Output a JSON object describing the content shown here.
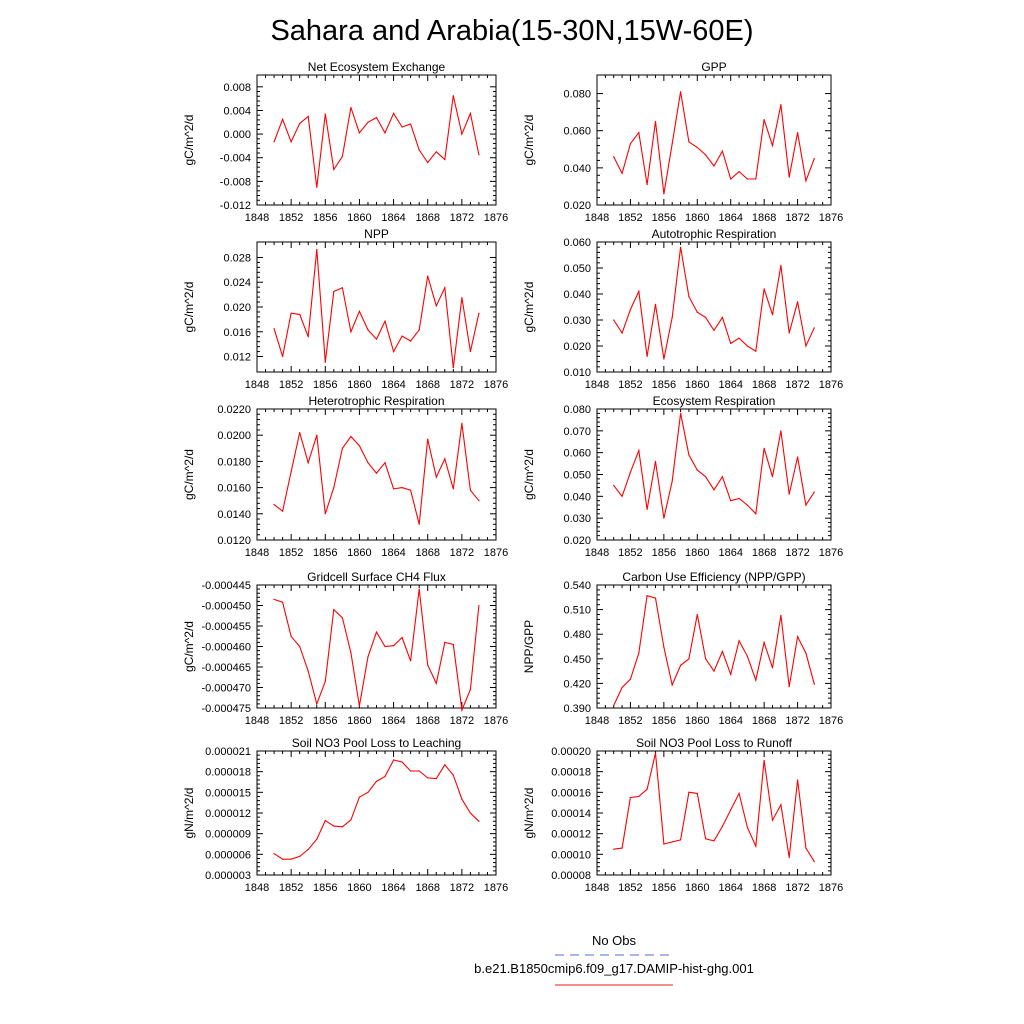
{
  "title": "Sahara and Arabia(15-30N,15W-60E)",
  "legend": {
    "entries": [
      {
        "label": "No Obs",
        "color": "#5a6ad8",
        "dash": true
      },
      {
        "label": "b.e21.B1850cmip6.f09_g17.DAMIP-hist-ghg.001",
        "color": "#e0201e",
        "dash": false
      }
    ]
  },
  "colors": {
    "series": "#ff0000",
    "axis": "#000000"
  },
  "chart_data": [
    {
      "type": "line",
      "title": "Net Ecosystem Exchange",
      "ylabel": "gC/m^2/d",
      "xlim": [
        1848,
        1876
      ],
      "xticks": [
        "1848",
        "1852",
        "1856",
        "1860",
        "1864",
        "1868",
        "1872",
        "1876"
      ],
      "ylim": [
        -0.012,
        0.01
      ],
      "yticks": [
        "0.008",
        "0.004",
        "0.000",
        "-0.004",
        "-0.008",
        "-0.012"
      ],
      "yticks_values": [
        0.008,
        0.004,
        0.0,
        -0.004,
        -0.008,
        -0.012
      ],
      "x": [
        1850,
        1851,
        1852,
        1853,
        1854,
        1855,
        1856,
        1857,
        1858,
        1859,
        1860,
        1861,
        1862,
        1863,
        1864,
        1865,
        1866,
        1867,
        1868,
        1869,
        1870,
        1871,
        1872,
        1873,
        1874
      ],
      "values": [
        -0.0013,
        0.0025,
        -0.0013,
        0.0018,
        0.003,
        -0.009,
        0.0034,
        -0.006,
        -0.0038,
        0.0045,
        0.0002,
        0.002,
        0.0028,
        0.0002,
        0.0035,
        0.0012,
        0.0017,
        -0.0027,
        -0.0048,
        -0.003,
        -0.0043,
        0.0065,
        0.0,
        0.0035,
        -0.0035
      ]
    },
    {
      "type": "line",
      "title": "GPP",
      "ylabel": "gC/m^2/d",
      "xlim": [
        1848,
        1876
      ],
      "xticks": [
        "1848",
        "1852",
        "1856",
        "1860",
        "1864",
        "1868",
        "1872",
        "1876"
      ],
      "ylim": [
        0.02,
        0.09
      ],
      "yticks": [
        "0.080",
        "0.060",
        "0.040",
        "0.020"
      ],
      "yticks_values": [
        0.08,
        0.06,
        0.04,
        0.02
      ],
      "x": [
        1850,
        1851,
        1852,
        1853,
        1854,
        1855,
        1856,
        1857,
        1858,
        1859,
        1860,
        1861,
        1862,
        1863,
        1864,
        1865,
        1866,
        1867,
        1868,
        1869,
        1870,
        1871,
        1872,
        1873,
        1874
      ],
      "values": [
        0.046,
        0.037,
        0.053,
        0.059,
        0.031,
        0.065,
        0.026,
        0.053,
        0.081,
        0.054,
        0.051,
        0.047,
        0.041,
        0.049,
        0.034,
        0.038,
        0.034,
        0.034,
        0.066,
        0.052,
        0.074,
        0.035,
        0.059,
        0.033,
        0.045
      ]
    },
    {
      "type": "line",
      "title": "NPP",
      "ylabel": "gC/m^2/d",
      "xlim": [
        1848,
        1876
      ],
      "xticks": [
        "1848",
        "1852",
        "1856",
        "1860",
        "1864",
        "1868",
        "1872",
        "1876"
      ],
      "ylim": [
        0.0095,
        0.0305
      ],
      "yticks": [
        "0.028",
        "0.024",
        "0.020",
        "0.016",
        "0.012"
      ],
      "yticks_values": [
        0.028,
        0.024,
        0.02,
        0.016,
        0.012
      ],
      "x": [
        1850,
        1851,
        1852,
        1853,
        1854,
        1855,
        1856,
        1857,
        1858,
        1859,
        1860,
        1861,
        1862,
        1863,
        1864,
        1865,
        1866,
        1867,
        1868,
        1869,
        1870,
        1871,
        1872,
        1873,
        1874
      ],
      "values": [
        0.0165,
        0.012,
        0.019,
        0.0188,
        0.0152,
        0.0293,
        0.0111,
        0.0225,
        0.0231,
        0.016,
        0.0193,
        0.0163,
        0.0148,
        0.0177,
        0.0128,
        0.0153,
        0.0145,
        0.0163,
        0.025,
        0.0202,
        0.0231,
        0.0102,
        0.0215,
        0.0128,
        0.019
      ]
    },
    {
      "type": "line",
      "title": "Autotrophic Respiration",
      "ylabel": "gC/m^2/d",
      "xlim": [
        1848,
        1876
      ],
      "xticks": [
        "1848",
        "1852",
        "1856",
        "1860",
        "1864",
        "1868",
        "1872",
        "1876"
      ],
      "ylim": [
        0.01,
        0.06
      ],
      "yticks": [
        "0.060",
        "0.050",
        "0.040",
        "0.030",
        "0.020",
        "0.010"
      ],
      "yticks_values": [
        0.06,
        0.05,
        0.04,
        0.03,
        0.02,
        0.01
      ],
      "x": [
        1850,
        1851,
        1852,
        1853,
        1854,
        1855,
        1856,
        1857,
        1858,
        1859,
        1860,
        1861,
        1862,
        1863,
        1864,
        1865,
        1866,
        1867,
        1868,
        1869,
        1870,
        1871,
        1872,
        1873,
        1874
      ],
      "values": [
        0.03,
        0.025,
        0.034,
        0.041,
        0.016,
        0.036,
        0.015,
        0.031,
        0.058,
        0.039,
        0.033,
        0.031,
        0.026,
        0.031,
        0.021,
        0.023,
        0.02,
        0.018,
        0.042,
        0.032,
        0.051,
        0.025,
        0.037,
        0.02,
        0.027
      ]
    },
    {
      "type": "line",
      "title": "Heterotrophic Respiration",
      "ylabel": "gC/m^2/d",
      "xlim": [
        1848,
        1876
      ],
      "xticks": [
        "1848",
        "1852",
        "1856",
        "1860",
        "1864",
        "1868",
        "1872",
        "1876"
      ],
      "ylim": [
        0.012,
        0.022
      ],
      "yticks": [
        "0.0220",
        "0.0200",
        "0.0180",
        "0.0160",
        "0.0140",
        "0.0120"
      ],
      "yticks_values": [
        0.022,
        0.02,
        0.018,
        0.016,
        0.014,
        0.012
      ],
      "x": [
        1850,
        1851,
        1852,
        1853,
        1854,
        1855,
        1856,
        1857,
        1858,
        1859,
        1860,
        1861,
        1862,
        1863,
        1864,
        1865,
        1866,
        1867,
        1868,
        1869,
        1870,
        1871,
        1872,
        1873,
        1874
      ],
      "values": [
        0.0147,
        0.0142,
        0.0172,
        0.0202,
        0.0179,
        0.02,
        0.014,
        0.016,
        0.019,
        0.0199,
        0.0192,
        0.0179,
        0.0171,
        0.0179,
        0.0159,
        0.016,
        0.0158,
        0.0132,
        0.0197,
        0.0168,
        0.0182,
        0.0159,
        0.0209,
        0.0158,
        0.015
      ]
    },
    {
      "type": "line",
      "title": "Ecosystem Respiration",
      "ylabel": "gC/m^2/d",
      "xlim": [
        1848,
        1876
      ],
      "xticks": [
        "1848",
        "1852",
        "1856",
        "1860",
        "1864",
        "1868",
        "1872",
        "1876"
      ],
      "ylim": [
        0.02,
        0.08
      ],
      "yticks": [
        "0.080",
        "0.070",
        "0.060",
        "0.050",
        "0.040",
        "0.030",
        "0.020"
      ],
      "yticks_values": [
        0.08,
        0.07,
        0.06,
        0.05,
        0.04,
        0.03,
        0.02
      ],
      "x": [
        1850,
        1851,
        1852,
        1853,
        1854,
        1855,
        1856,
        1857,
        1858,
        1859,
        1860,
        1861,
        1862,
        1863,
        1864,
        1865,
        1866,
        1867,
        1868,
        1869,
        1870,
        1871,
        1872,
        1873,
        1874
      ],
      "values": [
        0.045,
        0.04,
        0.051,
        0.061,
        0.034,
        0.056,
        0.03,
        0.047,
        0.078,
        0.059,
        0.052,
        0.049,
        0.043,
        0.049,
        0.038,
        0.039,
        0.036,
        0.032,
        0.062,
        0.049,
        0.07,
        0.041,
        0.058,
        0.036,
        0.042
      ]
    },
    {
      "type": "line",
      "title": "Gridcell Surface CH4 Flux",
      "ylabel": "gC/m^2/d",
      "xlim": [
        1848,
        1876
      ],
      "xticks": [
        "1848",
        "1852",
        "1856",
        "1860",
        "1864",
        "1868",
        "1872",
        "1876"
      ],
      "ylim": [
        -0.000475,
        -0.000445
      ],
      "yticks": [
        "-0.000445",
        "-0.000450",
        "-0.000455",
        "-0.000460",
        "-0.000465",
        "-0.000470",
        "-0.000475"
      ],
      "yticks_values": [
        -0.000445,
        -0.00045,
        -0.000455,
        -0.00046,
        -0.000465,
        -0.00047,
        -0.000475
      ],
      "x": [
        1850,
        1851,
        1852,
        1853,
        1854,
        1855,
        1856,
        1857,
        1858,
        1859,
        1860,
        1861,
        1862,
        1863,
        1864,
        1865,
        1866,
        1867,
        1868,
        1869,
        1870,
        1871,
        1872,
        1873,
        1874
      ],
      "values": [
        -0.0004485,
        -0.0004492,
        -0.0004575,
        -0.00046,
        -0.000466,
        -0.000474,
        -0.0004685,
        -0.000451,
        -0.000453,
        -0.0004615,
        -0.0004745,
        -0.0004625,
        -0.0004565,
        -0.00046,
        -0.0004598,
        -0.0004578,
        -0.0004635,
        -0.000446,
        -0.0004645,
        -0.000469,
        -0.000459,
        -0.0004595,
        -0.0004755,
        -0.0004705,
        -0.00045
      ]
    },
    {
      "type": "line",
      "title": "Carbon Use Efficiency (NPP/GPP)",
      "ylabel": "NPP/GPP",
      "xlim": [
        1848,
        1876
      ],
      "xticks": [
        "1848",
        "1852",
        "1856",
        "1860",
        "1864",
        "1868",
        "1872",
        "1876"
      ],
      "ylim": [
        0.39,
        0.54
      ],
      "yticks": [
        "0.540",
        "0.510",
        "0.480",
        "0.450",
        "0.420",
        "0.390"
      ],
      "yticks_values": [
        0.54,
        0.51,
        0.48,
        0.45,
        0.42,
        0.39
      ],
      "x": [
        1850,
        1851,
        1852,
        1853,
        1854,
        1855,
        1856,
        1857,
        1858,
        1859,
        1860,
        1861,
        1862,
        1863,
        1864,
        1865,
        1866,
        1867,
        1868,
        1869,
        1870,
        1871,
        1872,
        1873,
        1874
      ],
      "values": [
        0.393,
        0.415,
        0.425,
        0.457,
        0.527,
        0.524,
        0.464,
        0.418,
        0.442,
        0.45,
        0.504,
        0.45,
        0.435,
        0.459,
        0.431,
        0.472,
        0.453,
        0.424,
        0.47,
        0.439,
        0.503,
        0.416,
        0.477,
        0.457,
        0.419
      ]
    },
    {
      "type": "line",
      "title": "Soil NO3 Pool Loss to Leaching",
      "ylabel": "gN/m^2/d",
      "xlim": [
        1848,
        1876
      ],
      "xticks": [
        "1848",
        "1852",
        "1856",
        "1860",
        "1864",
        "1868",
        "1872",
        "1876"
      ],
      "ylim": [
        3e-06,
        2.1e-05
      ],
      "yticks": [
        "0.000021",
        "0.000018",
        "0.000015",
        "0.000012",
        "0.000009",
        "0.000006",
        "0.000003"
      ],
      "yticks_values": [
        2.1e-05,
        1.8e-05,
        1.5e-05,
        1.2e-05,
        9e-06,
        6e-06,
        3e-06
      ],
      "x": [
        1850,
        1851,
        1852,
        1853,
        1854,
        1855,
        1856,
        1857,
        1858,
        1859,
        1860,
        1861,
        1862,
        1863,
        1864,
        1865,
        1866,
        1867,
        1868,
        1869,
        1870,
        1871,
        1872,
        1873,
        1874
      ],
      "values": [
        6.1e-06,
        5.3e-06,
        5.3e-06,
        5.7e-06,
        6.7e-06,
        8.2e-06,
        1.09e-05,
        1.01e-05,
        1e-05,
        1.1e-05,
        1.43e-05,
        1.5e-05,
        1.66e-05,
        1.73e-05,
        1.97e-05,
        1.94e-05,
        1.81e-05,
        1.81e-05,
        1.71e-05,
        1.7e-05,
        1.9e-05,
        1.75e-05,
        1.4e-05,
        1.2e-05,
        1.08e-05
      ]
    },
    {
      "type": "line",
      "title": "Soil NO3 Pool Loss to Runoff",
      "ylabel": "gN/m^2/d",
      "xlim": [
        1848,
        1876
      ],
      "xticks": [
        "1848",
        "1852",
        "1856",
        "1860",
        "1864",
        "1868",
        "1872",
        "1876"
      ],
      "ylim": [
        8e-05,
        0.0002
      ],
      "yticks": [
        "0.00020",
        "0.00018",
        "0.00016",
        "0.00014",
        "0.00012",
        "0.00010",
        "0.00008"
      ],
      "yticks_values": [
        0.0002,
        0.00018,
        0.00016,
        0.00014,
        0.00012,
        0.0001,
        8e-05
      ],
      "x": [
        1850,
        1851,
        1852,
        1853,
        1854,
        1855,
        1856,
        1857,
        1858,
        1859,
        1860,
        1861,
        1862,
        1863,
        1864,
        1865,
        1866,
        1867,
        1868,
        1869,
        1870,
        1871,
        1872,
        1873,
        1874
      ],
      "values": [
        0.000105,
        0.000106,
        0.000155,
        0.000156,
        0.000163,
        0.000198,
        0.00011,
        0.000112,
        0.000114,
        0.00016,
        0.000159,
        0.000115,
        0.000113,
        0.000127,
        0.000143,
        0.000159,
        0.000126,
        0.000108,
        0.000191,
        0.000133,
        0.000148,
        9.7e-05,
        0.000172,
        0.000106,
        9.3e-05
      ]
    }
  ]
}
